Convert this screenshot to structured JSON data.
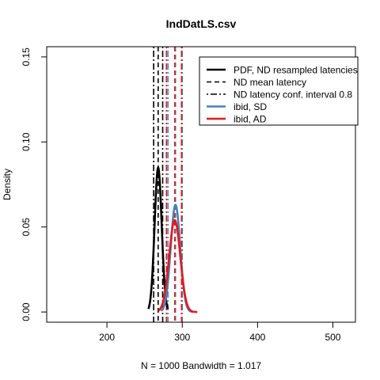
{
  "chart_data": {
    "type": "line",
    "title": "IndDatLS.csv",
    "xlabel": "N = 1000   Bandwidth = 1.017",
    "ylabel": "Density",
    "xlim": [
      120,
      530
    ],
    "ylim": [
      -0.006,
      0.156
    ],
    "x_ticks": [
      200,
      300,
      400,
      500
    ],
    "y_ticks": [
      0.0,
      0.05,
      0.1,
      0.15
    ],
    "x_tick_labels": [
      "200",
      "300",
      "400",
      "500"
    ],
    "y_tick_labels": [
      "0.00",
      "0.05",
      "0.10",
      "0.15"
    ],
    "grid": false,
    "legend_position": "top-right",
    "legend": [
      {
        "label": "PDF, ND resampled latencies",
        "color": "#000000",
        "style": "solid",
        "width": 2.5
      },
      {
        "label": "ND mean latency",
        "color": "#000000",
        "style": "dashed",
        "width": 1.5
      },
      {
        "label": "ND latency conf. interval 0.8",
        "color": "#000000",
        "style": "dotdash",
        "width": 1.5
      },
      {
        "label": "ibid, SD",
        "color": "#4682b4",
        "style": "solid",
        "width": 2.5
      },
      {
        "label": "ibid, AD",
        "color": "#e31a1c",
        "style": "solid",
        "width": 2.5
      }
    ],
    "series": [
      {
        "name": "PDF, ND resampled latencies",
        "color": "#000000",
        "mean": 268,
        "peak": 0.085,
        "sd": 4.7,
        "range": [
          255,
          281
        ]
      },
      {
        "name": "ibid, SD",
        "color": "#4682b4",
        "mean": 291,
        "peak": 0.063,
        "sd": 6.3,
        "range": [
          272,
          314
        ]
      },
      {
        "name": "ibid, AD",
        "color": "#e31a1c",
        "mean": 290,
        "peak": 0.054,
        "sd": 7.4,
        "range": [
          268,
          320
        ]
      }
    ],
    "vlines": [
      {
        "x": 262,
        "color": "#000000",
        "style": "dotdash"
      },
      {
        "x": 268,
        "color": "#000000",
        "style": "dashed"
      },
      {
        "x": 274,
        "color": "#000000",
        "style": "dotdash"
      },
      {
        "x": 281,
        "color": "#4682b4",
        "style": "dotdash"
      },
      {
        "x": 291,
        "color": "#4682b4",
        "style": "dashed"
      },
      {
        "x": 300,
        "color": "#4682b4",
        "style": "dotdash"
      },
      {
        "x": 279,
        "color": "#e31a1c",
        "style": "dotdash"
      },
      {
        "x": 290,
        "color": "#e31a1c",
        "style": "dashed"
      },
      {
        "x": 299,
        "color": "#e31a1c",
        "style": "dotdash"
      }
    ]
  }
}
